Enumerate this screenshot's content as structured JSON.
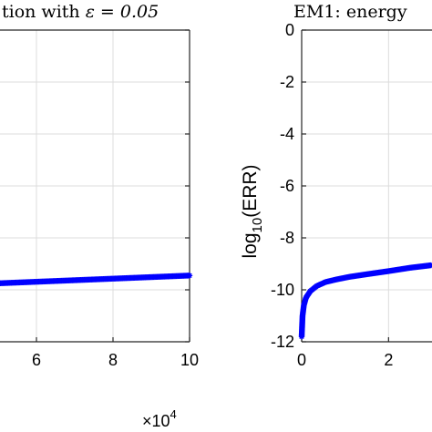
{
  "chart_data": [
    {
      "type": "scatter",
      "title_prefix": "tion with ",
      "title_math": "ε = 0.05",
      "xlim": [
        5,
        10
      ],
      "ylim": [
        -12,
        0
      ],
      "xticks": [
        6,
        8,
        10
      ],
      "yticks": [
        -8,
        -10,
        -12
      ],
      "x_multiplier": "×10",
      "x_multiplier_exp": "4",
      "grid": true,
      "marker_color": "#0000ff",
      "series": [
        {
          "x_start": 5,
          "x_end": 10,
          "y_start": -9.75,
          "y_end": -9.45
        }
      ]
    },
    {
      "type": "scatter",
      "title": "EM1: energy",
      "ylabel_main": "log",
      "ylabel_sub": "10",
      "ylabel_tail": "(ERR)",
      "xlim": [
        0,
        3
      ],
      "ylim": [
        -12,
        0
      ],
      "xticks": [
        0,
        2
      ],
      "yticks": [
        0,
        -2,
        -4,
        -6,
        -8,
        -10,
        -12
      ],
      "grid": true,
      "marker_color": "#0000ff",
      "series": [
        {
          "x": [
            0,
            0.02,
            0.05,
            0.1,
            0.2,
            0.35,
            0.55,
            0.8,
            1.1,
            1.5,
            2.0,
            2.5,
            3.0
          ],
          "y": [
            -11.8,
            -11.0,
            -10.6,
            -10.3,
            -10.05,
            -9.85,
            -9.7,
            -9.6,
            -9.5,
            -9.4,
            -9.28,
            -9.15,
            -9.05
          ]
        }
      ]
    }
  ]
}
